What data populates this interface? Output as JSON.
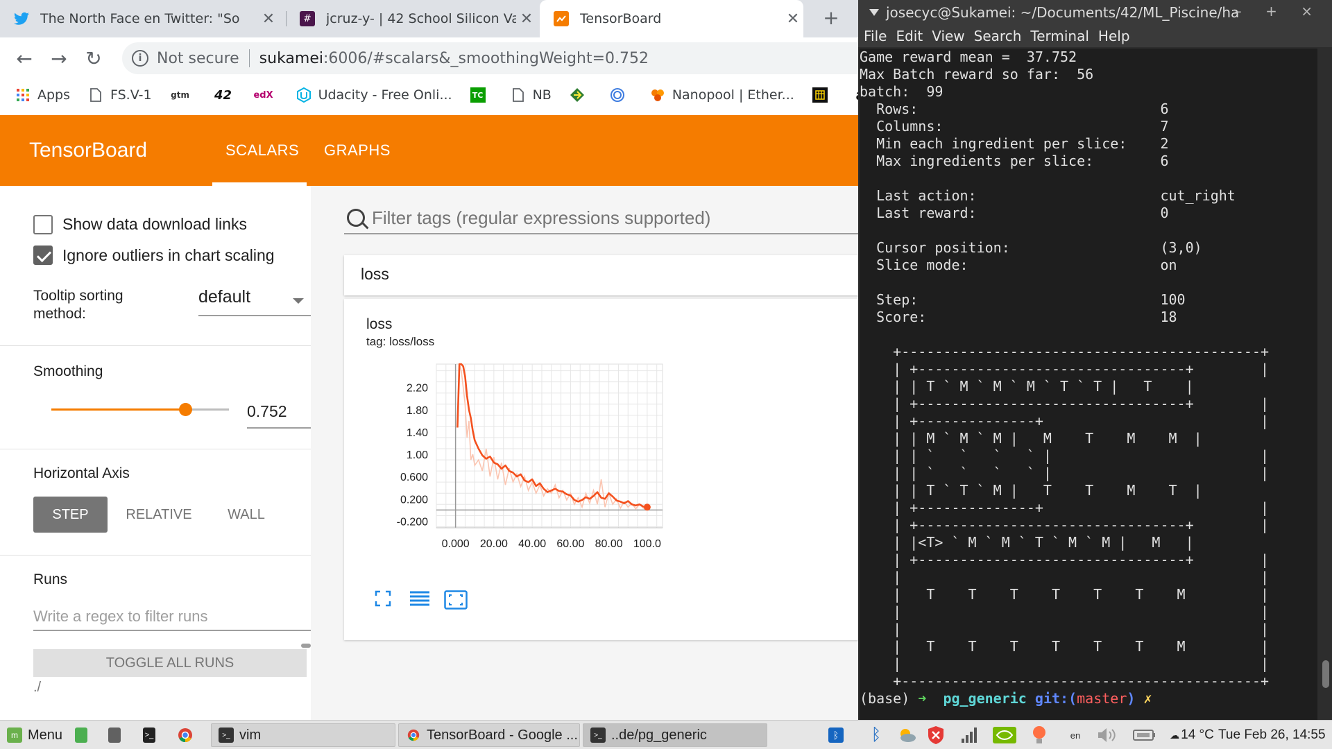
{
  "browser": {
    "tabs": [
      {
        "title": "The North Face en Twitter: \"So",
        "icon": "twitter-icon",
        "color": "#1da1f2"
      },
      {
        "title": "jcruz-y- | 42 School Silicon Valle",
        "icon": "slack-icon",
        "color": "#4a154b"
      },
      {
        "title": "TensorBoard",
        "icon": "tensorboard-icon",
        "color": "#f57c00",
        "active": true
      }
    ],
    "new_tab": "+",
    "address": {
      "security": "Not secure",
      "host": "sukamei",
      "path": ":6006/#scalars&_smoothingWeight=0.752"
    },
    "bookmarks": [
      {
        "label": "Apps",
        "icon": "apps-grid-icon"
      },
      {
        "label": "FS.V-1",
        "icon": "page-icon"
      },
      {
        "label": "",
        "icon": "gtm-icon",
        "glyph": "gtm"
      },
      {
        "label": "",
        "icon": "42-logo-icon",
        "glyph": "42"
      },
      {
        "label": "",
        "icon": "edx-icon",
        "glyph": "edX"
      },
      {
        "label": "Udacity - Free Onli...",
        "icon": "udacity-icon"
      },
      {
        "label": "",
        "icon": "techcrunch-icon",
        "glyph": "TC"
      },
      {
        "label": "NB",
        "icon": "page-icon"
      },
      {
        "label": "",
        "icon": "diamond-icon"
      },
      {
        "label": "",
        "icon": "globe-icon"
      },
      {
        "label": "Nanopool | Ether...",
        "icon": "nanopool-icon"
      },
      {
        "label": "",
        "icon": "calendar-icon"
      },
      {
        "label": "",
        "icon": "amazon-icon",
        "glyph": "a"
      }
    ]
  },
  "tensorboard": {
    "title": "TensorBoard",
    "tabs": [
      "SCALARS",
      "GRAPHS"
    ],
    "accent": "#f57c00",
    "sidebar": {
      "show_download_links": "Show data download links",
      "show_download_checked": false,
      "ignore_outliers": "Ignore outliers in chart scaling",
      "ignore_outliers_checked": true,
      "tooltip_label": "Tooltip sorting method:",
      "tooltip_value": "default",
      "smoothing_label": "Smoothing",
      "smoothing_value": "0.752",
      "smoothing_fraction": 0.752,
      "horizontal_axis_label": "Horizontal Axis",
      "axis_options": [
        "STEP",
        "RELATIVE",
        "WALL"
      ],
      "axis_selected": "STEP",
      "runs_label": "Runs",
      "runs_placeholder": "Write a regex to filter runs",
      "toggle_all": "TOGGLE ALL RUNS",
      "run_path": "./"
    },
    "main": {
      "filter_placeholder": "Filter tags (regular expressions supported)",
      "group_title": "loss",
      "card_title": "loss",
      "card_tag": "tag: loss/loss"
    }
  },
  "chart_data": {
    "type": "line",
    "title": "loss",
    "xlabel": "",
    "ylabel": "",
    "x_ticks": [
      "0.000",
      "20.00",
      "40.00",
      "60.00",
      "80.00",
      "100.0"
    ],
    "y_ticks": [
      "-0.200",
      "0.200",
      "0.600",
      "1.00",
      "1.40",
      "1.80",
      "2.20"
    ],
    "xlim": [
      -10,
      108
    ],
    "ylim": [
      -0.32,
      2.62
    ],
    "grid": true,
    "series": [
      {
        "role": "smoothed",
        "color": "#f4511e",
        "x": [
          1,
          2,
          3,
          4,
          5,
          6,
          7,
          8,
          9,
          10,
          12,
          14,
          16,
          18,
          20,
          22,
          24,
          26,
          28,
          30,
          32,
          34,
          36,
          38,
          40,
          42,
          44,
          46,
          48,
          50,
          52,
          54,
          56,
          58,
          60,
          62,
          64,
          66,
          68,
          70,
          72,
          74,
          76,
          78,
          80,
          82,
          84,
          86,
          88,
          90,
          92,
          94,
          96,
          98,
          100
        ],
        "y": [
          1.48,
          2.64,
          2.66,
          2.58,
          2.4,
          2.05,
          1.8,
          1.65,
          1.42,
          1.25,
          1.1,
          0.98,
          0.92,
          0.96,
          0.85,
          0.82,
          0.74,
          0.8,
          0.7,
          0.67,
          0.6,
          0.64,
          0.53,
          0.5,
          0.55,
          0.43,
          0.48,
          0.38,
          0.32,
          0.35,
          0.38,
          0.34,
          0.33,
          0.28,
          0.26,
          0.18,
          0.15,
          0.18,
          0.23,
          0.2,
          0.25,
          0.32,
          0.22,
          0.2,
          0.3,
          0.24,
          0.17,
          0.15,
          0.12,
          0.16,
          0.1,
          0.08,
          0.1,
          0.06,
          0.05
        ]
      },
      {
        "role": "raw",
        "color": "#fbc5b1",
        "x": [
          1,
          2,
          3,
          4,
          5,
          6,
          7,
          8,
          9,
          10,
          12,
          14,
          16,
          18,
          20,
          22,
          24,
          26,
          28,
          30,
          32,
          34,
          36,
          38,
          40,
          42,
          44,
          46,
          48,
          50,
          52,
          54,
          56,
          58,
          60,
          62,
          64,
          66,
          68,
          70,
          72,
          74,
          76,
          78,
          80,
          82,
          84,
          86,
          88,
          90,
          92,
          94,
          96,
          98,
          100
        ],
        "y": [
          1.48,
          2.8,
          2.5,
          2.2,
          1.9,
          1.3,
          1.6,
          0.9,
          1.0,
          0.8,
          0.9,
          0.7,
          1.1,
          0.6,
          0.95,
          0.55,
          0.85,
          0.45,
          0.75,
          0.5,
          0.65,
          0.42,
          0.6,
          0.35,
          0.5,
          0.3,
          0.45,
          0.25,
          0.38,
          0.3,
          0.45,
          0.22,
          0.35,
          0.18,
          0.3,
          0.1,
          0.22,
          0.05,
          0.3,
          0.12,
          0.35,
          0.1,
          0.55,
          0.05,
          0.3,
          0.1,
          0.2,
          0.03,
          0.15,
          0.05,
          0.12,
          0.02,
          0.1,
          0.03,
          0.05
        ]
      }
    ],
    "last_point": {
      "x": 100,
      "y": 0.05
    }
  },
  "terminal": {
    "title": "josecyc@Sukamei: ~/Documents/42/ML_Piscine/ha",
    "window_controls": "– + ×",
    "menu": [
      "File",
      "Edit",
      "View",
      "Search",
      "Terminal",
      "Help"
    ],
    "lines": [
      "Game reward mean =  37.752",
      "Max Batch reward so far:  56",
      "batch:  99",
      "  Rows:                             6",
      "  Columns:                          7",
      "  Min each ingredient per slice:    2",
      "  Max ingredients per slice:        6",
      "",
      "  Last action:                      cut_right",
      "  Last reward:                      0",
      "",
      "  Cursor position:                  (3,0)",
      "  Slice mode:                       on",
      "",
      "  Step:                             100",
      "  Score:                            18",
      "",
      "    +-------------------------------------------+",
      "    | +--------------------------------+        |",
      "    | | T ` M ` M ` M ` T ` T |   T    |",
      "    | +--------------------------------+        |",
      "    | +--------------+                          |",
      "    | | M ` M ` M |   M    T    M    M  |",
      "    | | `   `   `   ` |                         |",
      "    | | `   `   `   ` |                         |",
      "    | | T ` T ` M |   T    T    M    T  |",
      "    | +--------------+                          |",
      "    | +--------------------------------+        |",
      "    | |<T> ` M ` M ` T ` M ` M |   M   |",
      "    | +--------------------------------+        |",
      "    |                                           |",
      "    |   T    T    T    T    T    T    M         |",
      "    |                                           |",
      "    |                                           |",
      "    |   T    T    T    T    T    T    M         |",
      "    |                                           |",
      "    +-------------------------------------------+"
    ],
    "prompt": {
      "env": "(base)",
      "arrow": "➜",
      "dir": "pg_generic",
      "git": "git:",
      "branch_open": "(",
      "branch": "master",
      "branch_close": ")",
      "dirty": "✗"
    }
  },
  "taskbar": {
    "menu": "Menu",
    "windows": [
      {
        "label": "vim",
        "icon": "terminal-icon"
      },
      {
        "label": "TensorBoard - Google ...",
        "icon": "chrome-icon"
      },
      {
        "label": "..de/pg_generic",
        "icon": "terminal-icon",
        "current": true
      }
    ],
    "lang": "en",
    "weather": "14 °C",
    "clock": "Tue Feb 26, 14:55"
  }
}
